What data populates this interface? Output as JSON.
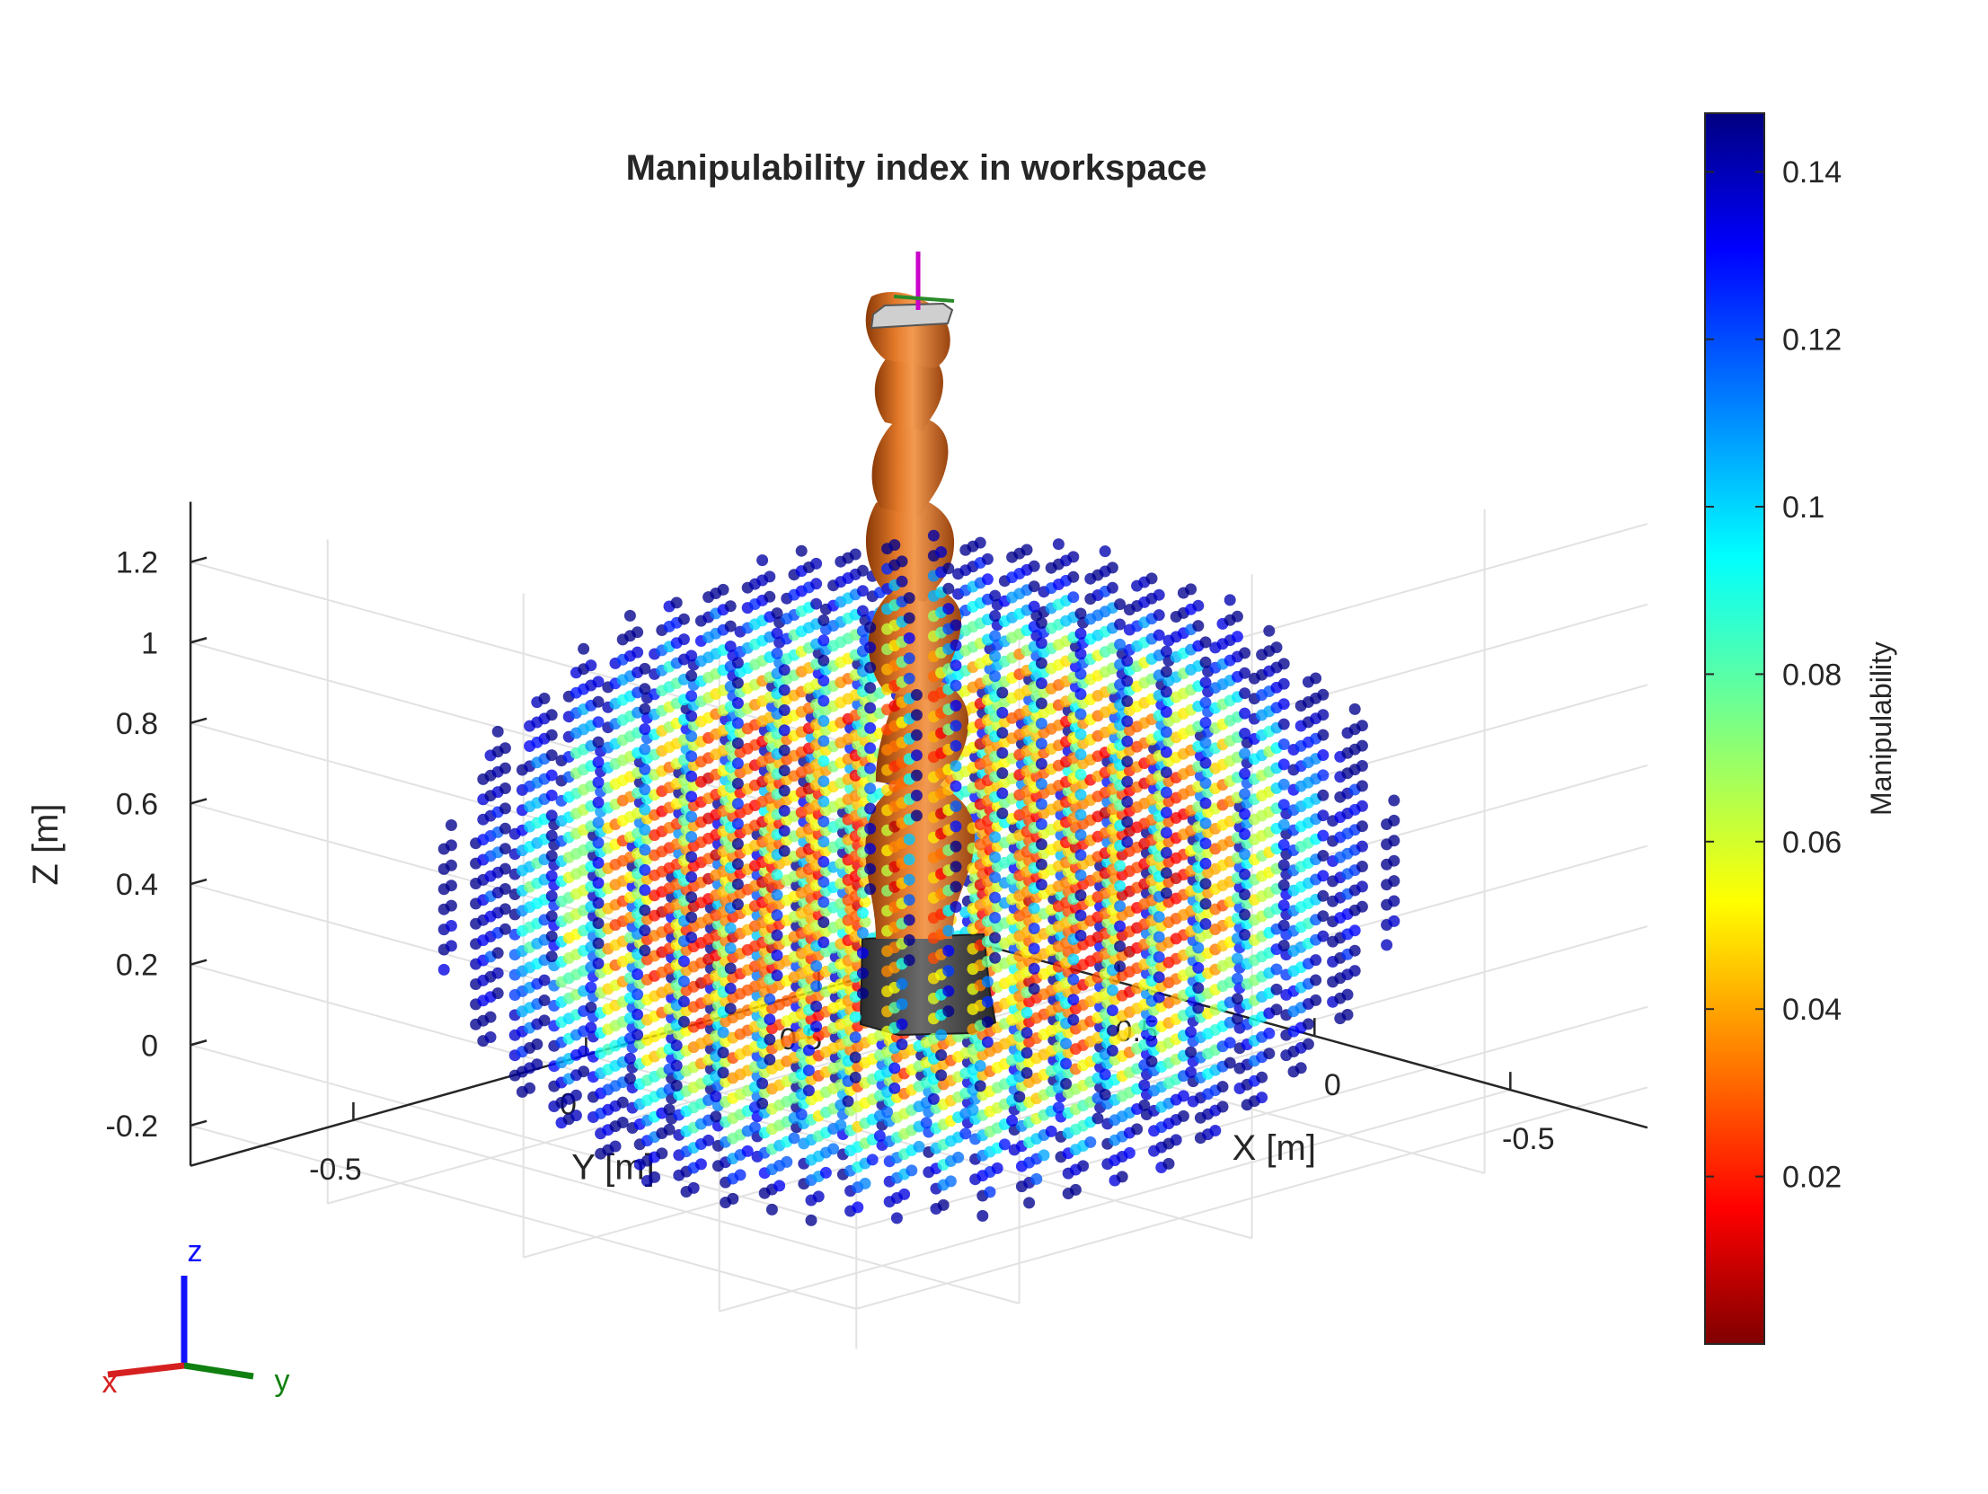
{
  "chart_data": {
    "type": "scatter",
    "title": "Manipulability index in workspace",
    "xlabel": "X [m]",
    "ylabel": "Y [m]",
    "zlabel": "Z [m]",
    "xlim": [
      -0.85,
      0.85
    ],
    "ylim": [
      -0.85,
      0.85
    ],
    "zlim": [
      -0.3,
      1.35
    ],
    "x_ticks": [
      "-0.5",
      "0",
      "0.5"
    ],
    "y_ticks": [
      "-0.5",
      "0",
      "0.5"
    ],
    "z_ticks": [
      "-0.2",
      "0",
      "0.2",
      "0.4",
      "0.6",
      "0.8",
      "1",
      "1.2"
    ],
    "grid": true,
    "grid_step": 0.1,
    "reach_radius": 0.8,
    "base_height": 0.36,
    "colorbar": {
      "label": "Manipulability",
      "colormap": "jet",
      "range": [
        0,
        0.147
      ],
      "ticks": [
        "0.02",
        "0.04",
        "0.06",
        "0.08",
        "0.1",
        "0.12",
        "0.14"
      ]
    },
    "view_triad": {
      "x": "x",
      "y": "y",
      "z": "z"
    },
    "colors": {
      "x_axis": "#d62020",
      "y_axis": "#108010",
      "z_axis": "#1010ff",
      "robot": "#d8641a",
      "robot_base": "#4a4a4a"
    }
  }
}
